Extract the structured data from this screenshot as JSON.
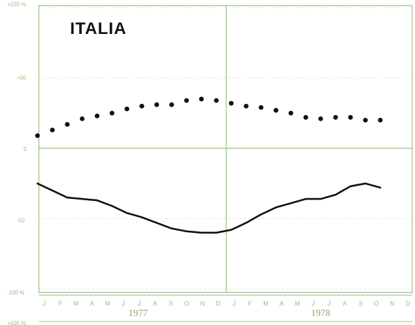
{
  "title": "ITALIA",
  "chart_data": {
    "type": "line",
    "title": "ITALIA",
    "y_tick_labels": [
      "+100 %",
      "+50",
      "0",
      "-50",
      "-100 %",
      "+100 %"
    ],
    "ylim": [
      -100,
      100
    ],
    "month_labels": [
      "J",
      "F",
      "M",
      "A",
      "M",
      "J",
      "J",
      "A",
      "S",
      "O",
      "N",
      "D",
      "J",
      "F",
      "M",
      "A",
      "M",
      "J",
      "J",
      "A",
      "S",
      "O",
      "N",
      "D"
    ],
    "years": [
      "1977",
      "1978"
    ],
    "grid": true,
    "colors": {
      "axis": "#8fc47a",
      "data": "#111111"
    },
    "series": [
      {
        "style": "dots",
        "values": [
          9,
          13,
          17,
          21,
          23,
          25,
          28,
          30,
          31,
          31,
          34,
          35,
          34,
          32,
          30,
          29,
          27,
          25,
          22,
          21,
          22,
          22,
          20,
          20
        ]
      },
      {
        "style": "line",
        "values": [
          -25,
          -30,
          -35,
          -36,
          -37,
          -41,
          -46,
          -49,
          -53,
          -57,
          -59,
          -60,
          -60,
          -58,
          -53,
          -47,
          -42,
          -39,
          -36,
          -36,
          -33,
          -27,
          -25,
          -28
        ]
      }
    ]
  }
}
